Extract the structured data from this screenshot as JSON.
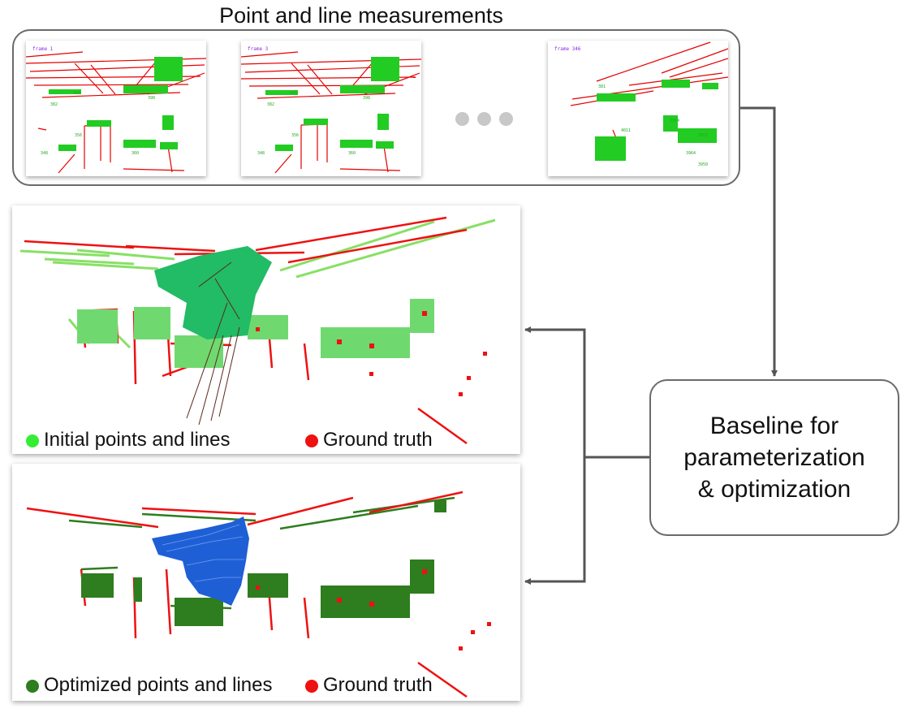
{
  "measurements": {
    "title": "Point and line measurements",
    "frames": [
      {
        "label": "frame 1"
      },
      {
        "label": "frame 3"
      },
      {
        "label": "frame 346"
      }
    ]
  },
  "baseline": {
    "lines": [
      "Baseline for",
      "parameterization",
      "& optimization"
    ]
  },
  "panels": {
    "initial": {
      "legend_left": "Initial points and lines",
      "legend_right": "Ground truth",
      "colors": {
        "estimate": "#33ee33",
        "truth": "#ee1111",
        "trajectory": "#22bb66"
      }
    },
    "optimized": {
      "legend_left": "Optimized points and lines",
      "legend_right": "Ground truth",
      "colors": {
        "estimate": "#2e7d1e",
        "truth": "#ee1111",
        "trajectory": "#1f5fd6"
      }
    }
  },
  "colors": {
    "frame_lines": "#e60000",
    "frame_points": "#22cc22",
    "frame_label": "#8a2be2",
    "connector": "#555555"
  }
}
